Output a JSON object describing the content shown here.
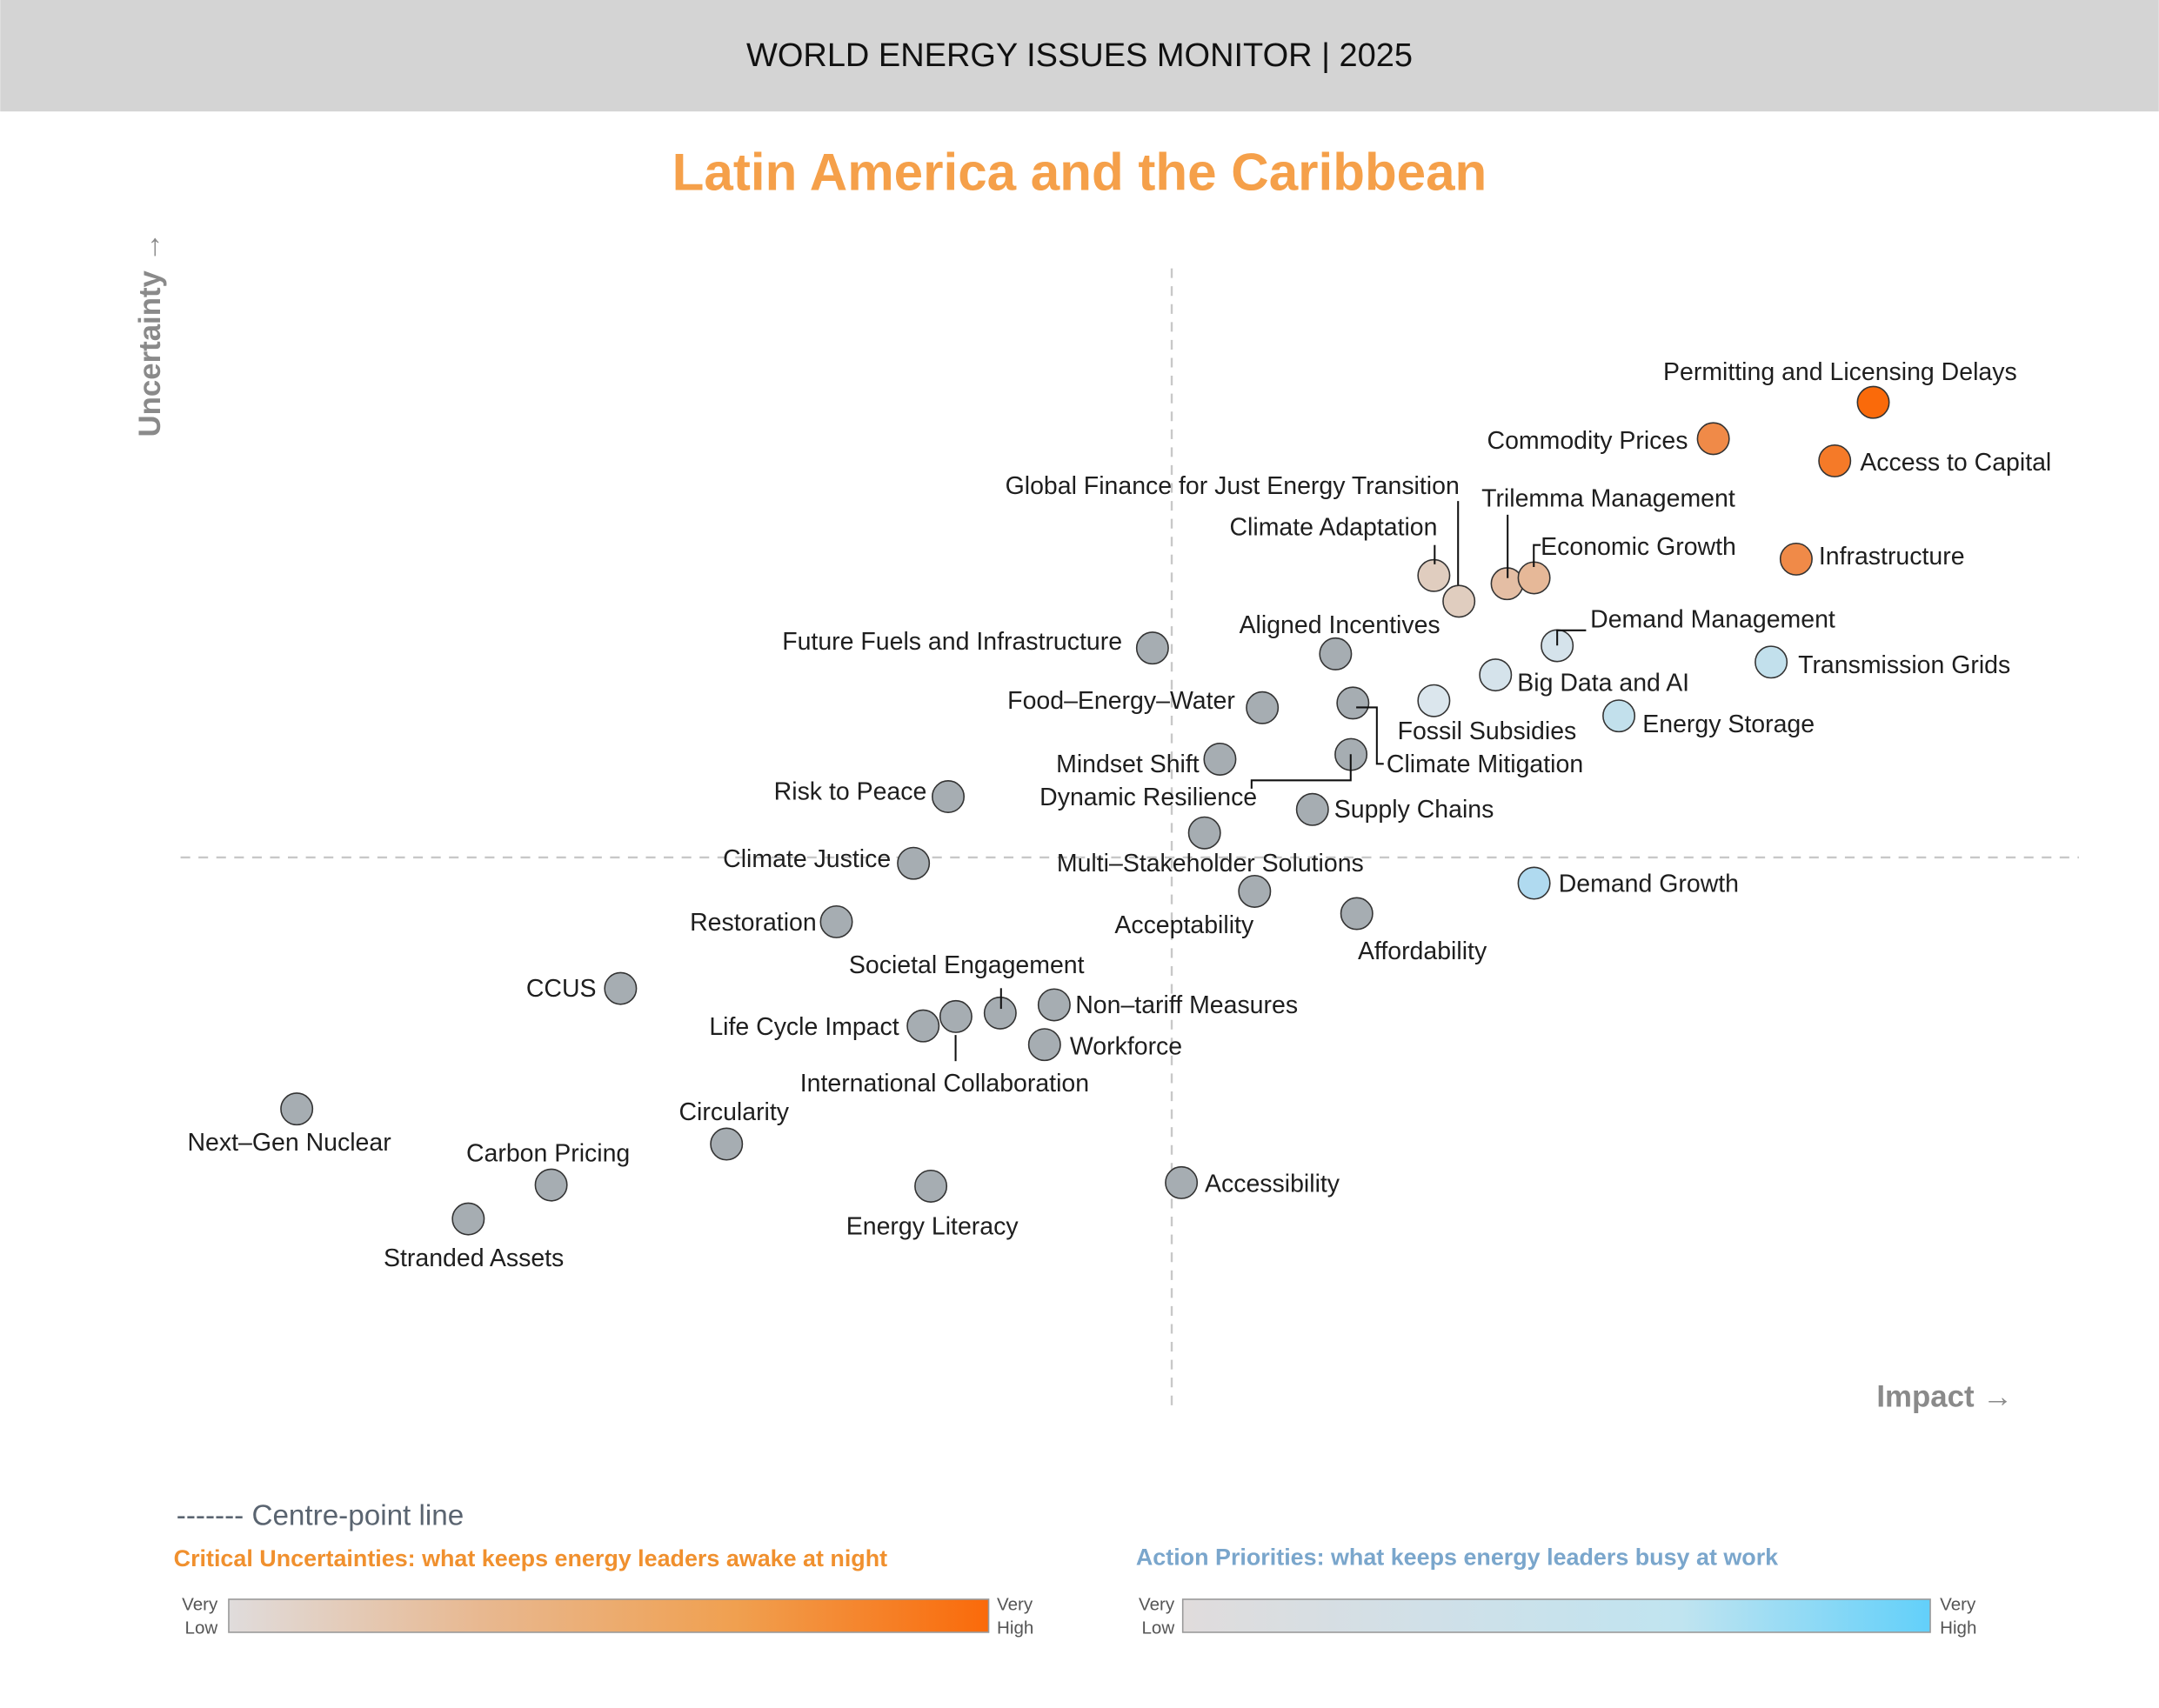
{
  "header": {
    "title": "WORLD ENERGY ISSUES MONITOR | 2025"
  },
  "chart_data": {
    "type": "scatter",
    "title": "Latin America and the Caribbean",
    "xlabel": "Impact →",
    "ylabel": "Uncertainty →",
    "xlim": [
      0,
      100
    ],
    "ylim": [
      0,
      100
    ],
    "centre": [
      50,
      50
    ],
    "grid": false,
    "colors": {
      "title": "#f5a04a",
      "neutral": "#a6adb2",
      "uncertainty_high": "#fa6a0a",
      "priority_high": "#62d0fa",
      "low": "#e0dcdc"
    },
    "points": [
      {
        "name": "Permitting and Licensing Delays",
        "impact": 86.4,
        "uncertainty": 88.9,
        "color": "#fa6a0a"
      },
      {
        "name": "Commodity Prices",
        "impact": 78.1,
        "uncertainty": 85.8,
        "color": "#f08a48"
      },
      {
        "name": "Access to Capital",
        "impact": 84.4,
        "uncertainty": 83.9,
        "color": "#f57a28"
      },
      {
        "name": "Global Finance for Just Energy Transition",
        "impact": 64.9,
        "uncertainty": 71.9,
        "color": "#e0cdbf"
      },
      {
        "name": "Climate Adaptation",
        "impact": 63.6,
        "uncertainty": 74.1,
        "color": "#e0cdbf"
      },
      {
        "name": "Trilemma Management",
        "impact": 67.4,
        "uncertainty": 73.4,
        "color": "#e4bea4"
      },
      {
        "name": "Economic Growth",
        "impact": 68.8,
        "uncertainty": 73.9,
        "color": "#e6b898"
      },
      {
        "name": "Infrastructure",
        "impact": 82.4,
        "uncertainty": 75.5,
        "color": "#f08a48"
      },
      {
        "name": "Demand Management",
        "impact": 70.0,
        "uncertainty": 68.1,
        "color": "#d5e3eb"
      },
      {
        "name": "Aligned Incentives",
        "impact": 58.5,
        "uncertainty": 67.4,
        "color": "#a6adb2"
      },
      {
        "name": "Future Fuels and Infrastructure",
        "impact": 49.0,
        "uncertainty": 67.9,
        "color": "#a6adb2"
      },
      {
        "name": "Big Data and AI",
        "impact": 66.8,
        "uncertainty": 65.6,
        "color": "#d5e3eb"
      },
      {
        "name": "Transmission Grids",
        "impact": 81.1,
        "uncertainty": 66.7,
        "color": "#c2e0ec"
      },
      {
        "name": "Fossil Subsidies",
        "impact": 63.6,
        "uncertainty": 63.4,
        "color": "#dbe6ed"
      },
      {
        "name": "Energy Storage",
        "impact": 73.2,
        "uncertainty": 62.1,
        "color": "#c2e0ec"
      },
      {
        "name": "Food–Energy–Water",
        "impact": 54.7,
        "uncertainty": 62.8,
        "color": "#a6adb2"
      },
      {
        "name": "Climate Mitigation",
        "impact": 59.4,
        "uncertainty": 63.2,
        "color": "#a6adb2"
      },
      {
        "name": "Mindset Shift",
        "impact": 52.5,
        "uncertainty": 58.4,
        "color": "#a6adb2"
      },
      {
        "name": "Dynamic Resilience",
        "impact": 59.3,
        "uncertainty": 58.8,
        "color": "#a6adb2"
      },
      {
        "name": "Risk to Peace",
        "impact": 38.4,
        "uncertainty": 55.2,
        "color": "#a6adb2"
      },
      {
        "name": "Supply Chains",
        "impact": 57.3,
        "uncertainty": 54.1,
        "color": "#a6adb2"
      },
      {
        "name": "Multi–Stakeholder Solutions",
        "impact": 51.7,
        "uncertainty": 52.1,
        "color": "#a6adb2"
      },
      {
        "name": "Climate Justice",
        "impact": 36.6,
        "uncertainty": 49.5,
        "color": "#a6adb2"
      },
      {
        "name": "Demand Growth",
        "impact": 68.8,
        "uncertainty": 47.8,
        "color": "#b0daf0"
      },
      {
        "name": "Acceptability",
        "impact": 54.3,
        "uncertainty": 47.1,
        "color": "#a6adb2"
      },
      {
        "name": "Affordability",
        "impact": 59.6,
        "uncertainty": 45.2,
        "color": "#a6adb2"
      },
      {
        "name": "Restoration",
        "impact": 32.6,
        "uncertainty": 44.5,
        "color": "#a6adb2"
      },
      {
        "name": "CCUS",
        "impact": 21.4,
        "uncertainty": 38.8,
        "color": "#a6adb2"
      },
      {
        "name": "Societal Engagement",
        "impact": 41.1,
        "uncertainty": 36.7,
        "color": "#a6adb2"
      },
      {
        "name": "Non–tariff Measures",
        "impact": 43.9,
        "uncertainty": 37.4,
        "color": "#a6adb2"
      },
      {
        "name": "Life Cycle Impact",
        "impact": 37.1,
        "uncertainty": 35.6,
        "color": "#a6adb2"
      },
      {
        "name": "International Collaboration",
        "impact": 38.8,
        "uncertainty": 36.4,
        "color": "#a6adb2"
      },
      {
        "name": "Workforce",
        "impact": 43.4,
        "uncertainty": 34.0,
        "color": "#a6adb2"
      },
      {
        "name": "Next–Gen Nuclear",
        "impact": 4.6,
        "uncertainty": 28.5,
        "color": "#a6adb2"
      },
      {
        "name": "Circularity",
        "impact": 26.9,
        "uncertainty": 25.5,
        "color": "#a6adb2"
      },
      {
        "name": "Carbon Pricing",
        "impact": 17.8,
        "uncertainty": 22.0,
        "color": "#a6adb2"
      },
      {
        "name": "Accessibility",
        "impact": 50.5,
        "uncertainty": 22.2,
        "color": "#a6adb2"
      },
      {
        "name": "Energy Literacy",
        "impact": 37.5,
        "uncertainty": 21.9,
        "color": "#a6adb2"
      },
      {
        "name": "Stranded Assets",
        "impact": 13.5,
        "uncertainty": 19.1,
        "color": "#a6adb2"
      }
    ]
  },
  "legend": {
    "centre_line": "------- Centre-point line",
    "critical": {
      "title": "Critical Uncertainties: what keeps energy leaders awake at night",
      "low_1": "Very",
      "low_2": "Low",
      "high_1": "Very",
      "high_2": "High",
      "color": "#f0902e",
      "gradient": [
        "#e0dcdc",
        "#e8b890",
        "#f0a050",
        "#fa6a0a"
      ]
    },
    "action": {
      "title": "Action Priorities: what keeps energy leaders busy at work",
      "low_1": "Very",
      "low_2": "Low",
      "high_1": "Very",
      "high_2": "High",
      "color": "#7aa6cc",
      "gradient": [
        "#e0dcdc",
        "#d0e0e8",
        "#c0e4f0",
        "#62d0fa"
      ]
    }
  }
}
